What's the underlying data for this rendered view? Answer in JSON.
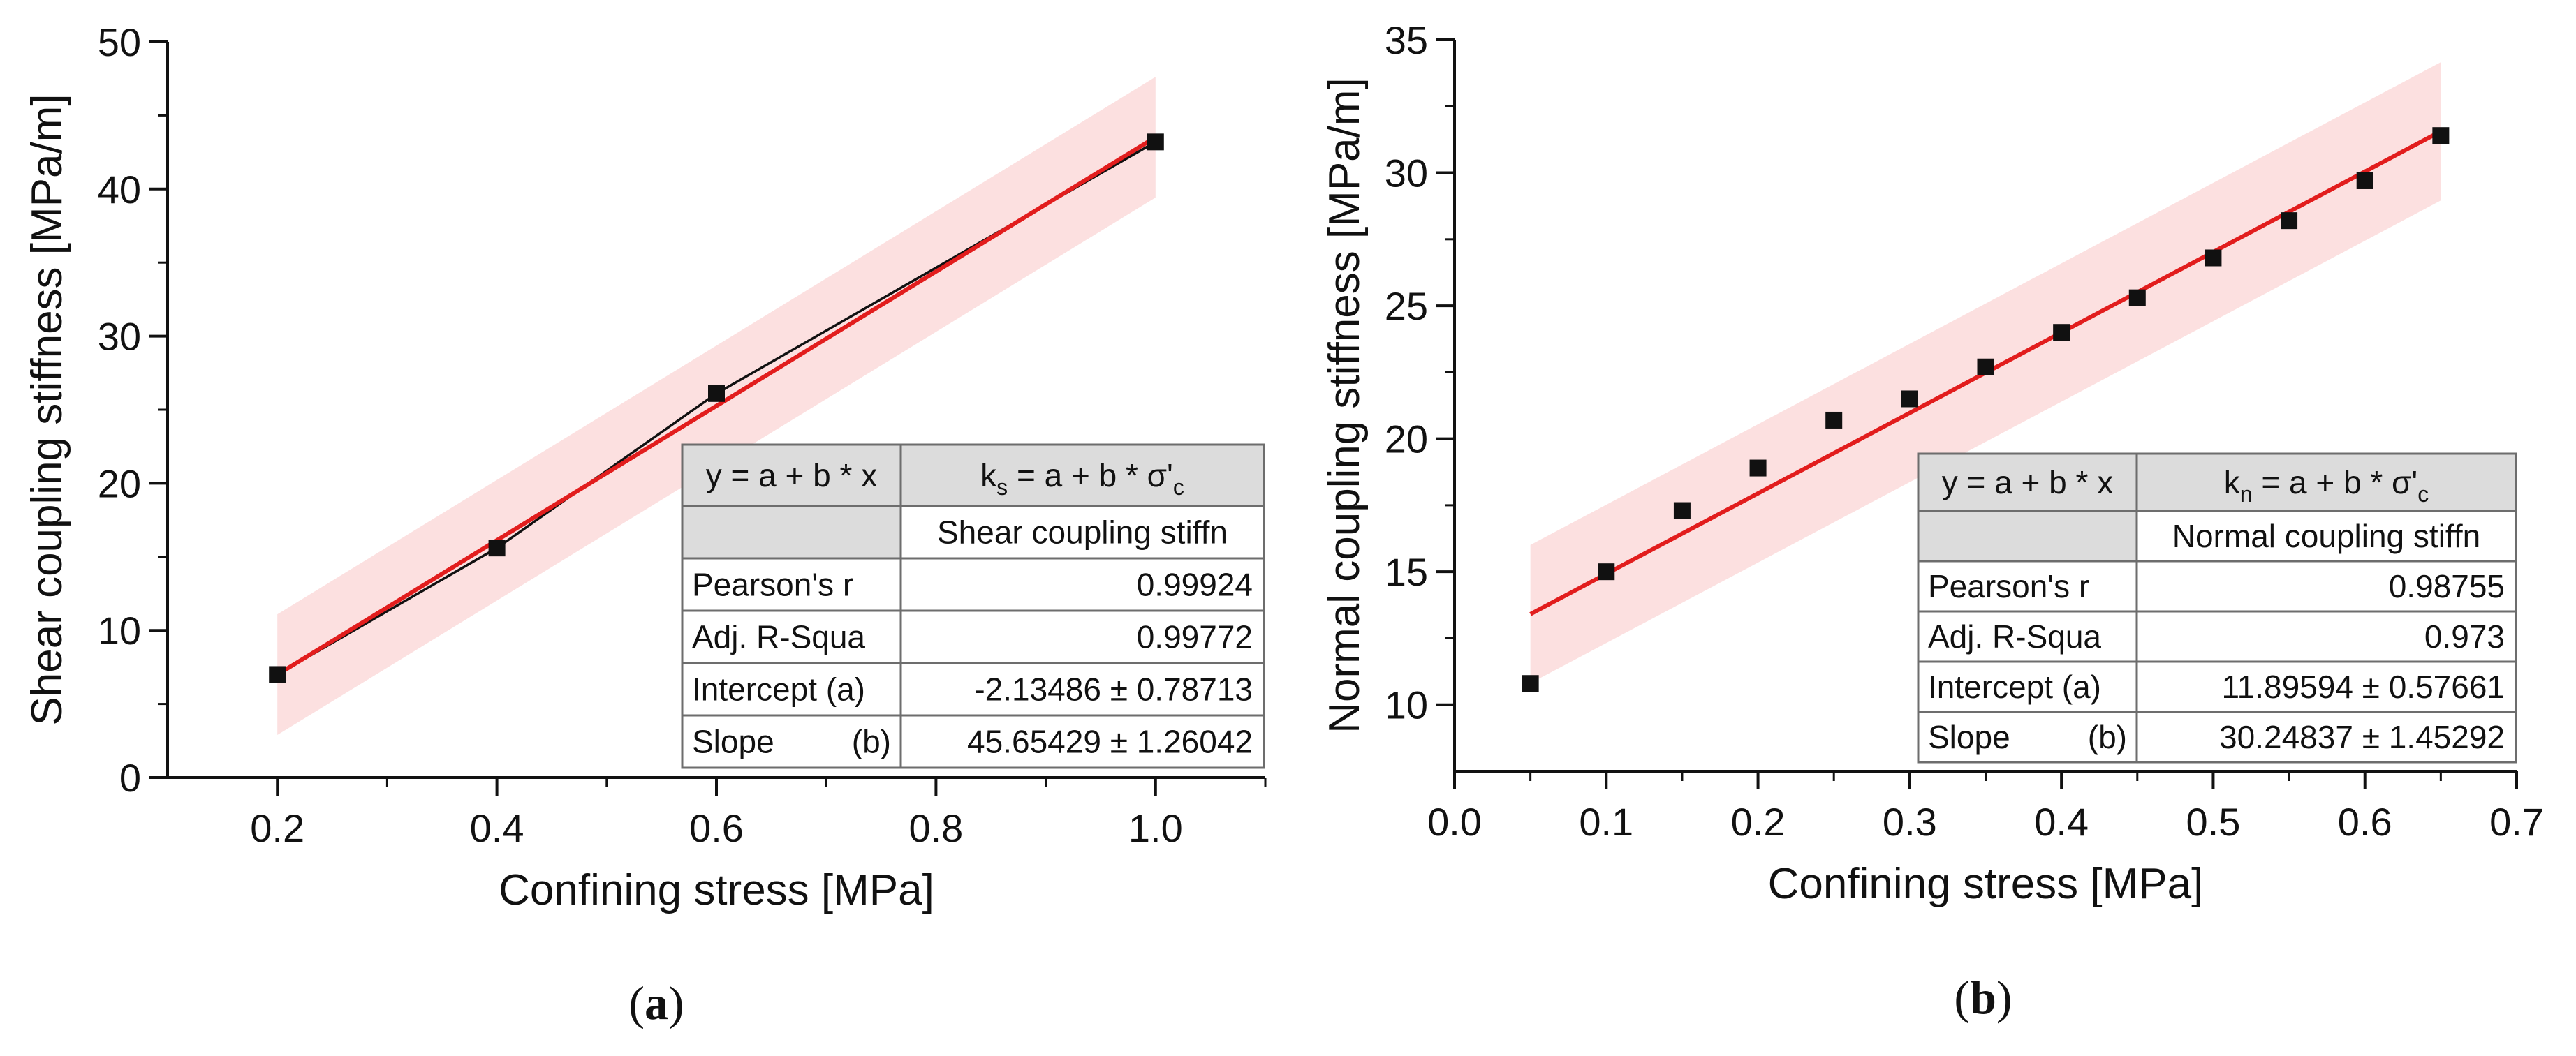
{
  "colors": {
    "fit_line": "#e21d1d",
    "band": "#fbdada",
    "marker": "#111111",
    "table_header_bg": "#dcdcdc"
  },
  "chart_data": [
    {
      "type": "scatter",
      "panel_label": {
        "pre": "(",
        "letter": "a",
        "post": ")"
      },
      "xlabel": "Confining stress [MPa]",
      "ylabel": "Shear coupling stiffness [MPa/m]",
      "xlim": [
        0.1,
        1.1
      ],
      "ylim": [
        0,
        50
      ],
      "x_ticks": [
        0.2,
        0.4,
        0.6,
        0.8,
        1.0
      ],
      "x_tick_labels": [
        "0.2",
        "0.4",
        "0.6",
        "0.8",
        "1.0"
      ],
      "y_ticks": [
        0,
        10,
        20,
        30,
        40,
        50
      ],
      "y_tick_labels": [
        "0",
        "10",
        "20",
        "30",
        "40",
        "50"
      ],
      "series": [
        {
          "name": "Shear coupling stiffness",
          "x": [
            0.2,
            0.4,
            0.6,
            1.0
          ],
          "y": [
            7.0,
            15.6,
            26.1,
            43.2
          ],
          "connect": true
        }
      ],
      "fit": {
        "intercept": -2.13486,
        "slope": 45.65429,
        "x_range": [
          0.2,
          1.0
        ],
        "band_half_width": 4.1
      },
      "table": {
        "eq_generic": "y = a + b * x",
        "eq_var": "k",
        "eq_sub": "s",
        "eq_rest": " = a + b * σ'",
        "eq_rest_sub": "c",
        "column_name": "Shear coupling stiffn",
        "rows": [
          {
            "label": "Pearson's r",
            "label_b": "",
            "value": "0.99924"
          },
          {
            "label": "Adj. R-Squa",
            "label_b": "",
            "value": "0.99772"
          },
          {
            "label": "Intercept (a)",
            "label_b": "",
            "value": "-2.13486 ± 0.78713"
          },
          {
            "label": "Slope",
            "label_b": "(b)",
            "value": "45.65429 ± 1.26042"
          }
        ]
      }
    },
    {
      "type": "scatter",
      "panel_label": {
        "pre": "(",
        "letter": "b",
        "post": ")"
      },
      "xlabel": "Confining stress [MPa]",
      "ylabel": "Normal coupling stiffness [MPa/m]",
      "xlim": [
        0.0,
        0.7
      ],
      "ylim": [
        7.5,
        35
      ],
      "x_ticks": [
        0.0,
        0.1,
        0.2,
        0.3,
        0.4,
        0.5,
        0.6,
        0.7
      ],
      "x_tick_labels": [
        "0.0",
        "0.1",
        "0.2",
        "0.3",
        "0.4",
        "0.5",
        "0.6",
        "0.7"
      ],
      "y_ticks": [
        10,
        15,
        20,
        25,
        30,
        35
      ],
      "y_tick_labels": [
        "10",
        "15",
        "20",
        "25",
        "30",
        "35"
      ],
      "series": [
        {
          "name": "Normal coupling stiffness",
          "x": [
            0.05,
            0.1,
            0.15,
            0.2,
            0.25,
            0.3,
            0.35,
            0.4,
            0.45,
            0.5,
            0.55,
            0.6,
            0.65
          ],
          "y": [
            10.8,
            15.0,
            17.3,
            18.9,
            20.7,
            21.5,
            22.7,
            24.0,
            25.3,
            26.8,
            28.2,
            29.7,
            31.4
          ],
          "connect": false
        }
      ],
      "fit": {
        "intercept": 11.89594,
        "slope": 30.24837,
        "x_range": [
          0.05,
          0.65
        ],
        "band_half_width": 2.6
      },
      "table": {
        "eq_generic": "y = a + b * x",
        "eq_var": "k",
        "eq_sub": "n",
        "eq_rest": " = a + b * σ'",
        "eq_rest_sub": "c",
        "column_name": "Normal coupling stiffn",
        "rows": [
          {
            "label": "Pearson's r",
            "label_b": "",
            "value": "0.98755"
          },
          {
            "label": "Adj. R-Squa",
            "label_b": "",
            "value": "0.973"
          },
          {
            "label": "Intercept (a)",
            "label_b": "",
            "value": "11.89594 ± 0.57661"
          },
          {
            "label": "Slope",
            "label_b": "(b)",
            "value": "30.24837 ± 1.45292"
          }
        ]
      }
    }
  ]
}
